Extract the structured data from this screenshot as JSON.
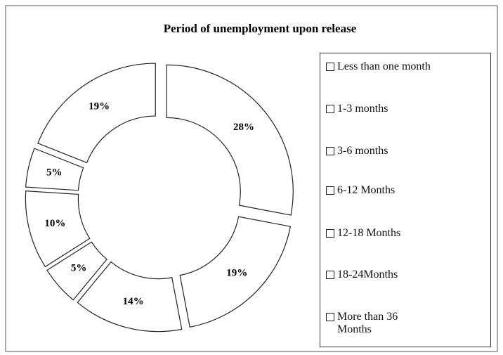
{
  "chart_data": {
    "type": "donut",
    "title": "Period of unemployment upon release",
    "categories": [
      "Less than one month",
      "1-3 months",
      "3-6 months",
      "6-12 Months",
      "12-18 Months",
      "18-24Months",
      "More than 36 Months"
    ],
    "values": [
      28,
      19,
      14,
      5,
      10,
      5,
      19
    ],
    "value_labels": [
      "28%",
      "19%",
      "14%",
      "5%",
      "10%",
      "5%",
      "19%"
    ],
    "color": "#ffffff",
    "exploded": true,
    "legend": "right"
  }
}
